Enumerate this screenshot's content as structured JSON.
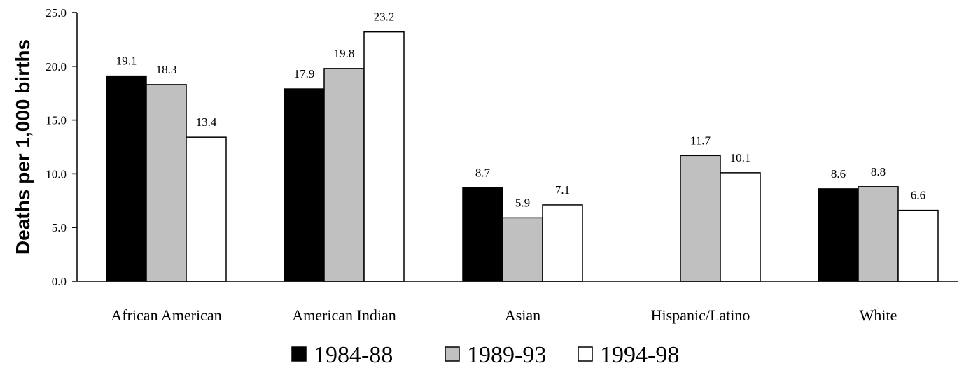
{
  "chart_data": {
    "type": "bar",
    "ylabel": "Deaths per 1,000 births",
    "xlabel": "",
    "ylim": [
      0,
      25
    ],
    "yticks": [
      0,
      5,
      10,
      15,
      20,
      25
    ],
    "ytick_labels": [
      "0.0",
      "5.0",
      "10.0",
      "15.0",
      "20.0",
      "25.0"
    ],
    "grid": false,
    "legend_position": "bottom",
    "categories": [
      "African American",
      "American Indian",
      "Asian",
      "Hispanic/Latino",
      "White"
    ],
    "series": [
      {
        "name": "1984-88",
        "color": "#000000",
        "values": [
          19.1,
          17.9,
          8.7,
          null,
          8.6
        ],
        "labels": [
          "19.1",
          "17.9",
          "8.7",
          "",
          "8.6"
        ]
      },
      {
        "name": "1989-93",
        "color": "#c0c0c0",
        "values": [
          18.3,
          19.8,
          5.9,
          11.7,
          8.8
        ],
        "labels": [
          "18.3",
          "19.8",
          "5.9",
          "11.7",
          "8.8"
        ]
      },
      {
        "name": "1994-98",
        "color": "#ffffff",
        "values": [
          13.4,
          23.2,
          7.1,
          10.1,
          6.6
        ],
        "labels": [
          "13.4",
          "23.2",
          "7.1",
          "10.1",
          "6.6"
        ]
      }
    ]
  }
}
